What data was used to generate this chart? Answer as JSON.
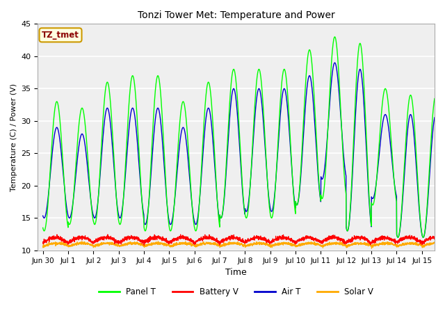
{
  "title": "Tonzi Tower Met: Temperature and Power",
  "xlabel": "Time",
  "ylabel": "Temperature (C) / Power (V)",
  "ylim": [
    10,
    45
  ],
  "annotation": "TZ_tmet",
  "grid_color": "#d8d8d8",
  "xtick_labels": [
    "Jun 30",
    "Jul 1",
    "Jul 2",
    "Jul 3",
    "Jul 4",
    "Jul 5",
    "Jul 6",
    "Jul 7",
    "Jul 8",
    "Jul 9",
    "Jul 10",
    "Jul 11",
    "Jul 12",
    "Jul 13",
    "Jul 14",
    "Jul 15"
  ],
  "xtick_positions": [
    0,
    1,
    2,
    3,
    4,
    5,
    6,
    7,
    8,
    9,
    10,
    11,
    12,
    13,
    14,
    15
  ],
  "ytick_positions": [
    10,
    15,
    20,
    25,
    30,
    35,
    40,
    45
  ],
  "series_colors": {
    "panel_t": "#00ff00",
    "battery_v": "#ff0000",
    "air_t": "#0000cc",
    "solar_v": "#ffaa00"
  },
  "legend_labels": [
    "Panel T",
    "Battery V",
    "Air T",
    "Solar V"
  ],
  "panel_peaks": [
    33,
    32,
    36,
    37,
    37,
    33,
    36,
    38,
    38,
    38,
    41,
    43,
    42,
    35,
    34
  ],
  "panel_troughs": [
    13,
    14,
    14,
    14,
    13,
    13,
    13,
    15,
    15,
    15,
    17,
    18,
    13,
    17,
    12
  ],
  "air_peaks": [
    29,
    28,
    32,
    32,
    32,
    29,
    32,
    35,
    35,
    35,
    37,
    39,
    38,
    31,
    31
  ],
  "air_troughs": [
    15,
    15,
    15,
    15,
    14,
    14,
    14,
    15,
    16,
    16,
    17,
    21,
    13,
    18,
    12
  ],
  "batt_base": 11.2,
  "batt_amp": 0.8,
  "solar_base": 10.6,
  "solar_amp": 0.5
}
